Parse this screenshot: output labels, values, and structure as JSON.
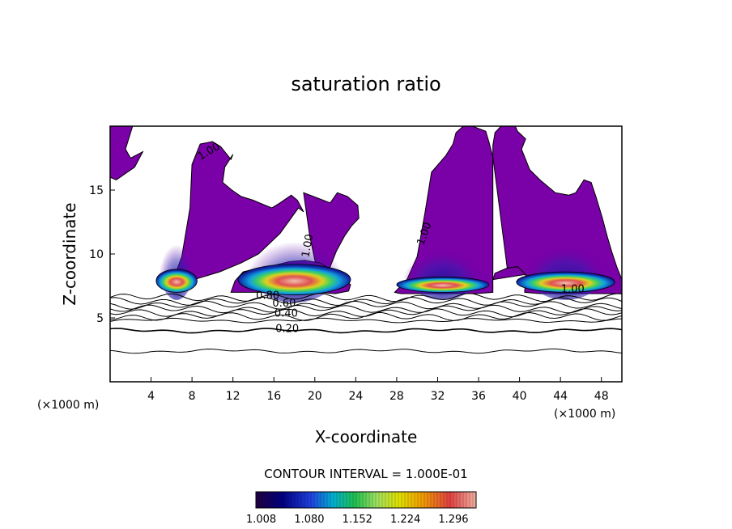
{
  "chart_data": {
    "type": "heatmap",
    "title": "saturation ratio",
    "xlabel": "X-coordinate",
    "ylabel": "Z-coordinate",
    "x_unit": "(×1000 m)",
    "y_unit": "(×1000 m)",
    "xlim": [
      0,
      50
    ],
    "ylim": [
      0,
      20
    ],
    "x_ticks": [
      4,
      8,
      12,
      16,
      20,
      24,
      28,
      32,
      36,
      40,
      44,
      48
    ],
    "y_ticks": [
      5,
      10,
      15
    ],
    "contour_interval_text": "CONTOUR INTERVAL = 1.000E-01",
    "colorbar": {
      "min": 1.0,
      "max": 1.33,
      "tick_values": [
        1.008,
        1.08,
        1.152,
        1.224,
        1.296
      ],
      "tick_labels": [
        "1.008",
        "1.080",
        "1.152",
        "1.224",
        "1.296"
      ]
    },
    "contour_labels": [
      {
        "text": "1.00",
        "x": 9.8,
        "y": 17.8,
        "angle": -30
      },
      {
        "text": "1.00",
        "x": 19.6,
        "y": 10.6,
        "angle": -80
      },
      {
        "text": "1.00",
        "x": 31.0,
        "y": 11.5,
        "angle": -70
      },
      {
        "text": "1.00",
        "x": 45.2,
        "y": 7.0,
        "angle": 0
      },
      {
        "text": "0.80",
        "x": 15.4,
        "y": 6.5,
        "angle": 0
      },
      {
        "text": "0.60",
        "x": 17.0,
        "y": 5.9,
        "angle": 0
      },
      {
        "text": "0.40",
        "x": 17.2,
        "y": 5.1,
        "angle": 0
      },
      {
        "text": "0.20",
        "x": 17.3,
        "y": 3.9,
        "angle": 0
      }
    ],
    "contour_levels_lower": [
      6.6,
      6.3,
      6.0,
      5.7,
      5.4,
      5.1,
      4.8,
      4.0,
      2.4
    ],
    "saturated_regions": [
      {
        "x": [
          0,
          2.2,
          1.5,
          2.0,
          3.2,
          2.4,
          0.6,
          0
        ],
        "y": [
          20,
          20,
          18.2,
          17.5,
          18.0,
          16.8,
          15.8,
          16.0
        ]
      },
      {
        "x": [
          5.5,
          6.0,
          7.0,
          7.8,
          8.0,
          8.8,
          10.0,
          10.8,
          11.8,
          12.0,
          11.2,
          11.0,
          11.9,
          12.8,
          14.0,
          14.6,
          15.8,
          16.6,
          17.7,
          18.3,
          18.9,
          18.4,
          16.6,
          14.5,
          12.8,
          10.7,
          7.8,
          6.0,
          5.5
        ],
        "y": [
          7.2,
          7.6,
          9.8,
          13.6,
          17.0,
          18.6,
          18.8,
          18.4,
          17.4,
          17.8,
          16.8,
          15.6,
          15.0,
          14.5,
          14.2,
          14.0,
          13.6,
          14.0,
          14.6,
          14.2,
          13.3,
          13.6,
          11.6,
          10.0,
          9.3,
          8.6,
          7.9,
          7.3,
          7.2
        ]
      },
      {
        "x": [
          18.9,
          20.2,
          21.5,
          22.2,
          23.2,
          24.2,
          24.3,
          23.6,
          22.9,
          22.1,
          21.5,
          20.8,
          20.2,
          19.5,
          18.9
        ],
        "y": [
          14.8,
          14.4,
          14.0,
          14.8,
          14.5,
          13.8,
          12.8,
          12.2,
          11.4,
          10.2,
          9.0,
          8.4,
          8.8,
          11.4,
          14.8
        ]
      },
      {
        "x": [
          11.8,
          12.2,
          13.0,
          14.0,
          15.0,
          16.0,
          17.5,
          19.0,
          20.5,
          21.6,
          22.4,
          23.5,
          23.3,
          22.0,
          20.0,
          18.0,
          16.0,
          14.0,
          12.3,
          11.8
        ],
        "y": [
          7.0,
          7.9,
          8.6,
          8.8,
          8.9,
          9.1,
          9.4,
          9.5,
          9.3,
          8.8,
          8.3,
          7.6,
          7.1,
          6.9,
          7.0,
          7.0,
          7.0,
          7.0,
          7.0,
          7.0
        ]
      },
      {
        "x": [
          27.8,
          29.0,
          30.0,
          30.8,
          31.4,
          32.8,
          33.5,
          33.8,
          34.5,
          35.4,
          36.7,
          37.0,
          37.4,
          37.4,
          35.8,
          34.0,
          32.0,
          30.0,
          28.4,
          27.8
        ],
        "y": [
          7.0,
          8.0,
          9.8,
          13.4,
          16.4,
          17.7,
          18.6,
          19.5,
          20.0,
          20.0,
          19.6,
          18.8,
          17.6,
          7.0,
          6.9,
          6.9,
          6.9,
          6.9,
          6.9,
          7.0
        ]
      },
      {
        "x": [
          37.4,
          37.4,
          37.6,
          38.2,
          38.4,
          38.9,
          39.2,
          39.6,
          39.8,
          40.6,
          40.2,
          41.0,
          42.0,
          43.5,
          44.8,
          45.5,
          46.3,
          47.0,
          47.5,
          48.1,
          48.6,
          49.0,
          49.5,
          50.0,
          50.0,
          48.0,
          45.0,
          42.0,
          40.5,
          40.6,
          39.8,
          38.8,
          37.4
        ],
        "y": [
          17.6,
          18.5,
          19.5,
          20.0,
          20.0,
          20.0,
          20.0,
          20.0,
          19.6,
          19.0,
          18.2,
          16.6,
          15.8,
          14.8,
          14.6,
          14.8,
          15.8,
          15.6,
          14.4,
          12.8,
          11.3,
          10.2,
          9.0,
          8.0,
          6.9,
          6.9,
          6.9,
          6.9,
          7.0,
          8.4,
          9.0,
          8.9,
          17.6
        ]
      },
      {
        "x": [
          40.6,
          39.8,
          38.8,
          37.6,
          37.4
        ],
        "y": [
          8.4,
          9.0,
          8.9,
          8.5,
          8.0
        ]
      }
    ],
    "supersaturated_cells": [
      {
        "x": 6.5,
        "y": 7.9,
        "rx": 2.0,
        "ry": 0.9
      },
      {
        "x": 18.0,
        "y": 8.0,
        "rx": 5.5,
        "ry": 1.2
      },
      {
        "x": 32.5,
        "y": 7.6,
        "rx": 4.5,
        "ry": 0.6
      },
      {
        "x": 44.5,
        "y": 7.8,
        "rx": 4.8,
        "ry": 0.8
      }
    ]
  }
}
